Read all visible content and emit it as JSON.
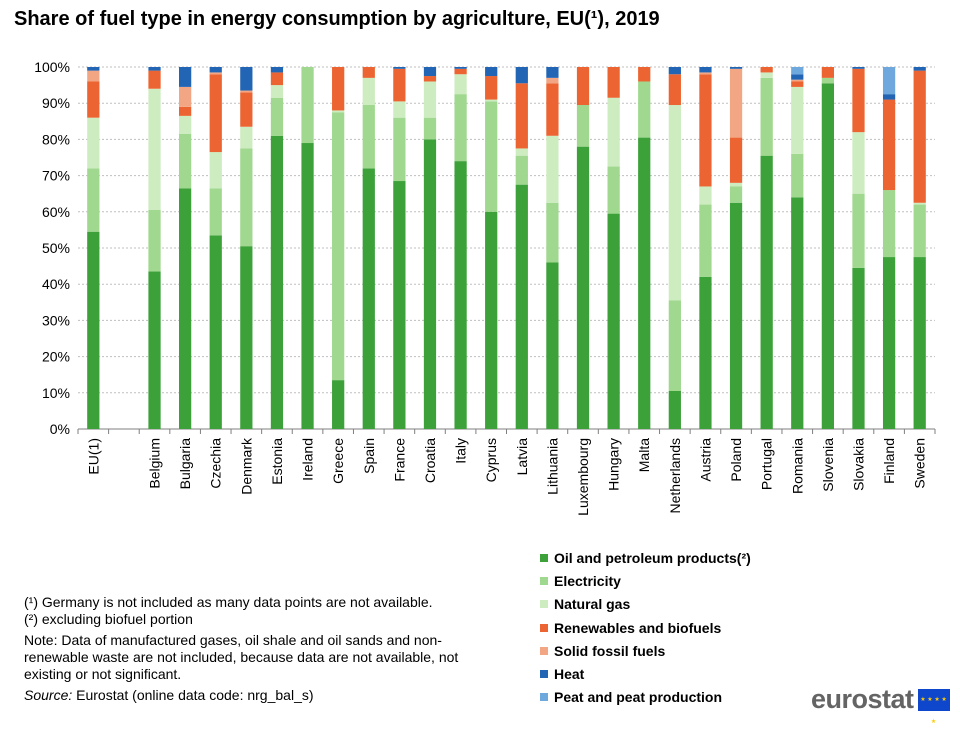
{
  "title": "Share of fuel type in energy consumption by agriculture, EU(¹), 2019",
  "chart_data": {
    "type": "bar",
    "stacked": true,
    "title": "Share of fuel type in energy consumption by agriculture, EU(¹), 2019",
    "xlabel": "",
    "ylabel": "",
    "ylim": [
      0,
      100
    ],
    "y_ticks": [
      "0%",
      "10%",
      "20%",
      "30%",
      "40%",
      "50%",
      "60%",
      "70%",
      "80%",
      "90%",
      "100%"
    ],
    "grid": true,
    "legend_position": "bottom-right",
    "categories": [
      "EU(1)",
      "Belgium",
      "Bulgaria",
      "Czechia",
      "Denmark",
      "Estonia",
      "Ireland",
      "Greece",
      "Spain",
      "France",
      "Croatia",
      "Italy",
      "Cyprus",
      "Latvia",
      "Lithuania",
      "Luxembourg",
      "Hungary",
      "Malta",
      "Netherlands",
      "Austria",
      "Poland",
      "Portugal",
      "Romania",
      "Slovenia",
      "Slovakia",
      "Finland",
      "Sweden"
    ],
    "series": [
      {
        "name": "Oil and petroleum products(²)",
        "color": "#3da13a",
        "values": [
          54.5,
          43.5,
          66.5,
          53.5,
          50.5,
          81.0,
          79.0,
          13.5,
          72.0,
          68.5,
          80.0,
          74.0,
          60.0,
          67.5,
          46.0,
          78.0,
          59.5,
          80.5,
          10.5,
          42.0,
          62.5,
          75.5,
          64.0,
          95.5,
          44.5,
          47.5,
          47.5
        ]
      },
      {
        "name": "Electricity",
        "color": "#9fd88e",
        "values": [
          17.5,
          17.0,
          15.0,
          13.0,
          27.0,
          10.5,
          21.0,
          74.0,
          17.5,
          17.5,
          6.0,
          18.5,
          30.5,
          8.0,
          16.5,
          11.5,
          13.0,
          15.5,
          25.0,
          20.0,
          4.5,
          21.5,
          12.0,
          1.5,
          20.5,
          18.5,
          14.5
        ]
      },
      {
        "name": "Natural gas",
        "color": "#cdecc0",
        "values": [
          14.0,
          33.5,
          5.0,
          10.0,
          6.0,
          3.5,
          0.0,
          0.5,
          7.5,
          4.5,
          10.0,
          5.5,
          0.5,
          2.0,
          18.5,
          0.0,
          19.0,
          0.0,
          54.0,
          5.0,
          1.0,
          1.5,
          18.5,
          0.0,
          17.0,
          0.0,
          0.5
        ]
      },
      {
        "name": "Renewables and biofuels",
        "color": "#ec6431",
        "values": [
          10.0,
          5.0,
          2.5,
          21.5,
          9.5,
          3.5,
          0.0,
          12.0,
          3.0,
          9.0,
          1.5,
          1.5,
          6.5,
          18.0,
          14.5,
          10.5,
          8.5,
          4.0,
          8.5,
          31.0,
          12.5,
          1.5,
          1.5,
          3.0,
          17.5,
          25.0,
          36.5
        ]
      },
      {
        "name": "Solid fossil fuels",
        "color": "#f3a684",
        "values": [
          3.0,
          0.0,
          5.5,
          0.5,
          0.5,
          0.0,
          0.0,
          0.0,
          0.0,
          0.0,
          0.0,
          0.0,
          0.0,
          0.0,
          1.5,
          0.0,
          0.0,
          0.0,
          0.0,
          0.5,
          19.0,
          0.0,
          0.5,
          0.0,
          0.0,
          0.0,
          0.0
        ]
      },
      {
        "name": "Heat",
        "color": "#2265b5",
        "values": [
          1.0,
          1.0,
          5.5,
          1.5,
          6.5,
          1.5,
          0.0,
          0.0,
          0.0,
          0.5,
          2.5,
          0.5,
          2.5,
          4.5,
          3.0,
          0.0,
          0.0,
          0.0,
          2.0,
          1.5,
          0.5,
          0.0,
          1.5,
          0.0,
          0.5,
          1.5,
          1.0
        ]
      },
      {
        "name": "Peat and peat production",
        "color": "#6fa8dc",
        "values": [
          0.0,
          0.0,
          0.0,
          0.0,
          0.0,
          0.0,
          0.0,
          0.0,
          0.0,
          0.0,
          0.0,
          0.0,
          0.0,
          0.0,
          0.0,
          0.0,
          0.0,
          0.0,
          0.0,
          0.0,
          0.0,
          0.0,
          2.0,
          0.0,
          0.0,
          7.5,
          0.0
        ]
      }
    ]
  },
  "legend_order": [
    0,
    1,
    2,
    3,
    4,
    5,
    6
  ],
  "notes": {
    "footnote1": "(¹) Germany  is not included as many data points are not available.",
    "footnote2": "(²) excluding biofuel portion",
    "note": "Note: Data of manufactured  gases, oil shale and oil sands and non-renewable  waste are not included, because data are not available, not existing or not significant.",
    "source_label": "Source:",
    "source_text": " Eurostat (online data code: nrg_bal_s)"
  },
  "logo": {
    "text": "eurostat",
    "flag_stars": "★ ★ ★ ★ ★"
  }
}
